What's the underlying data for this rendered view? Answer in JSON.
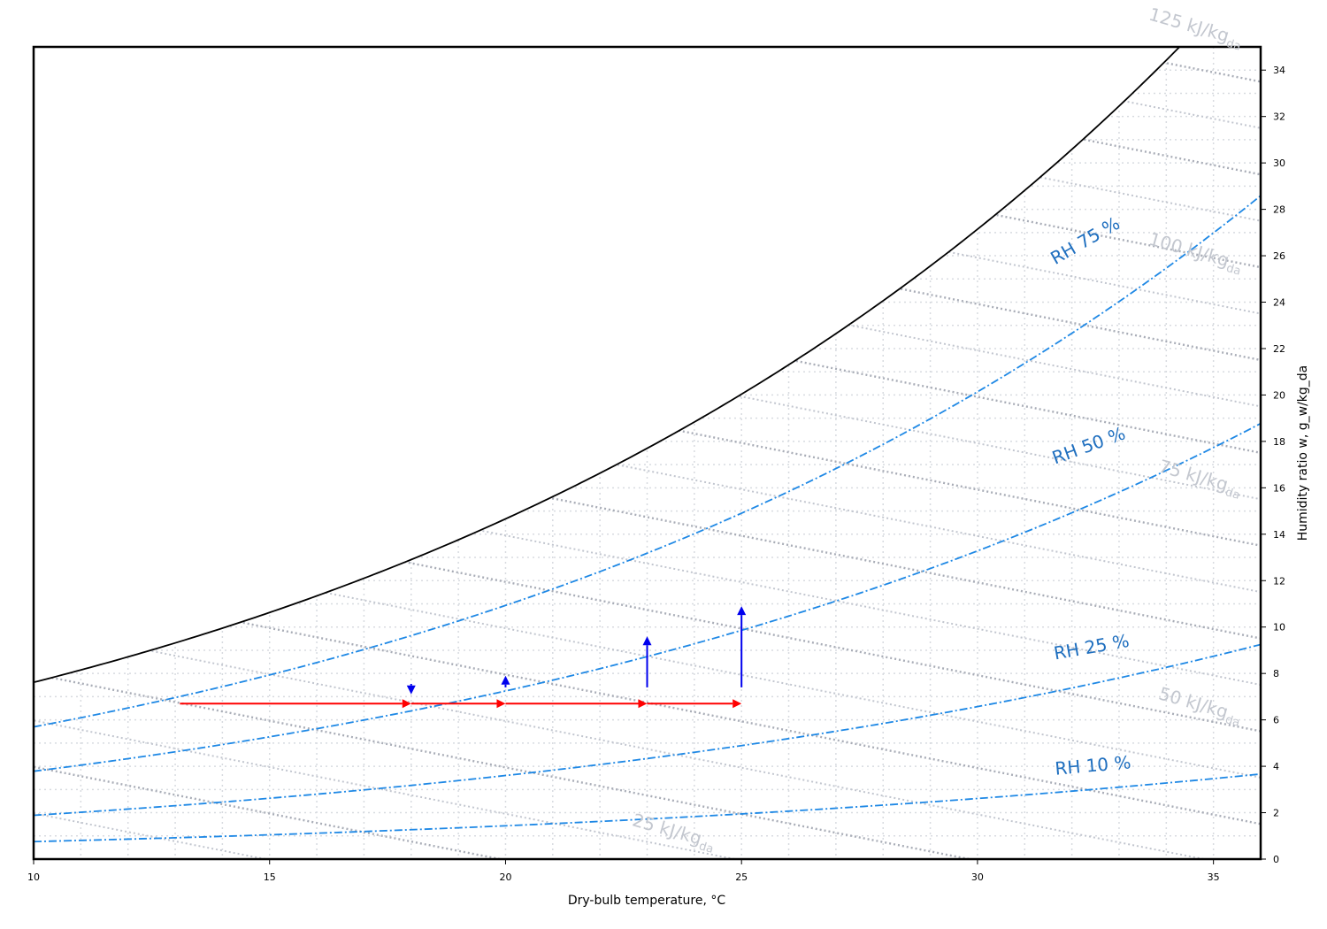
{
  "chart_data": {
    "type": "line",
    "xlabel": "Dry-bulb temperature, °C",
    "ylabel": "Humidity ratio w, g_w/kg_da",
    "xlim": [
      10,
      36
    ],
    "ylim": [
      0,
      35
    ],
    "x_ticks": [
      10,
      15,
      20,
      25,
      30,
      35
    ],
    "y_ticks": [
      0,
      2,
      4,
      6,
      8,
      10,
      12,
      14,
      16,
      18,
      20,
      22,
      24,
      26,
      28,
      30,
      32,
      34
    ],
    "y_axis_side": "right",
    "grid": true,
    "pressure_kpa": 101.325,
    "colors": {
      "saturation": "#000000",
      "rh_curve": "#1e88e5",
      "rh_label": "#1f6fbf",
      "enthalpy_major": "#a9adb7",
      "enthalpy_minor": "#c2c6cf",
      "enthalpy_label": "#c3c7cf",
      "grid": "#d8dbe0",
      "process_horizontal": "#ff0000",
      "process_vertical": "#0000ee"
    },
    "relative_humidity_curves": [
      {
        "rh": 75,
        "label": "RH 75 %"
      },
      {
        "rh": 50,
        "label": "RH 50 %"
      },
      {
        "rh": 25,
        "label": "RH 25 %"
      },
      {
        "rh": 10,
        "label": "RH 10 %"
      }
    ],
    "enthalpy_lines_kj_per_kg": [
      10,
      15,
      20,
      25,
      30,
      35,
      40,
      45,
      50,
      55,
      60,
      65,
      70,
      75,
      80,
      85,
      90,
      95,
      100,
      105,
      110,
      115,
      120,
      125,
      130
    ],
    "enthalpy_labels": [
      {
        "h": 25,
        "text": "25 kJ/kg_da"
      },
      {
        "h": 50,
        "text": "50 kJ/kg_da"
      },
      {
        "h": 75,
        "text": "75 kJ/kg_da"
      },
      {
        "h": 100,
        "text": "100 kJ/kg_da"
      },
      {
        "h": 125,
        "text": "125 kJ/kg_da"
      }
    ],
    "process_arrows": [
      {
        "x1": 13.1,
        "y1": 6.7,
        "x2": 18.0,
        "y2": 6.7,
        "color": "red"
      },
      {
        "x1": 18.0,
        "y1": 6.7,
        "x2": 20.0,
        "y2": 6.7,
        "color": "red"
      },
      {
        "x1": 20.0,
        "y1": 6.7,
        "x2": 23.0,
        "y2": 6.7,
        "color": "red"
      },
      {
        "x1": 23.0,
        "y1": 6.7,
        "x2": 25.0,
        "y2": 6.7,
        "color": "red"
      },
      {
        "x1": 18.0,
        "y1": 7.55,
        "x2": 18.0,
        "y2": 7.1,
        "color": "blue"
      },
      {
        "x1": 20.0,
        "y1": 7.4,
        "x2": 20.0,
        "y2": 7.9,
        "color": "blue"
      },
      {
        "x1": 23.0,
        "y1": 7.4,
        "x2": 23.0,
        "y2": 9.6,
        "color": "blue"
      },
      {
        "x1": 25.0,
        "y1": 7.4,
        "x2": 25.0,
        "y2": 10.9,
        "color": "blue"
      }
    ]
  }
}
